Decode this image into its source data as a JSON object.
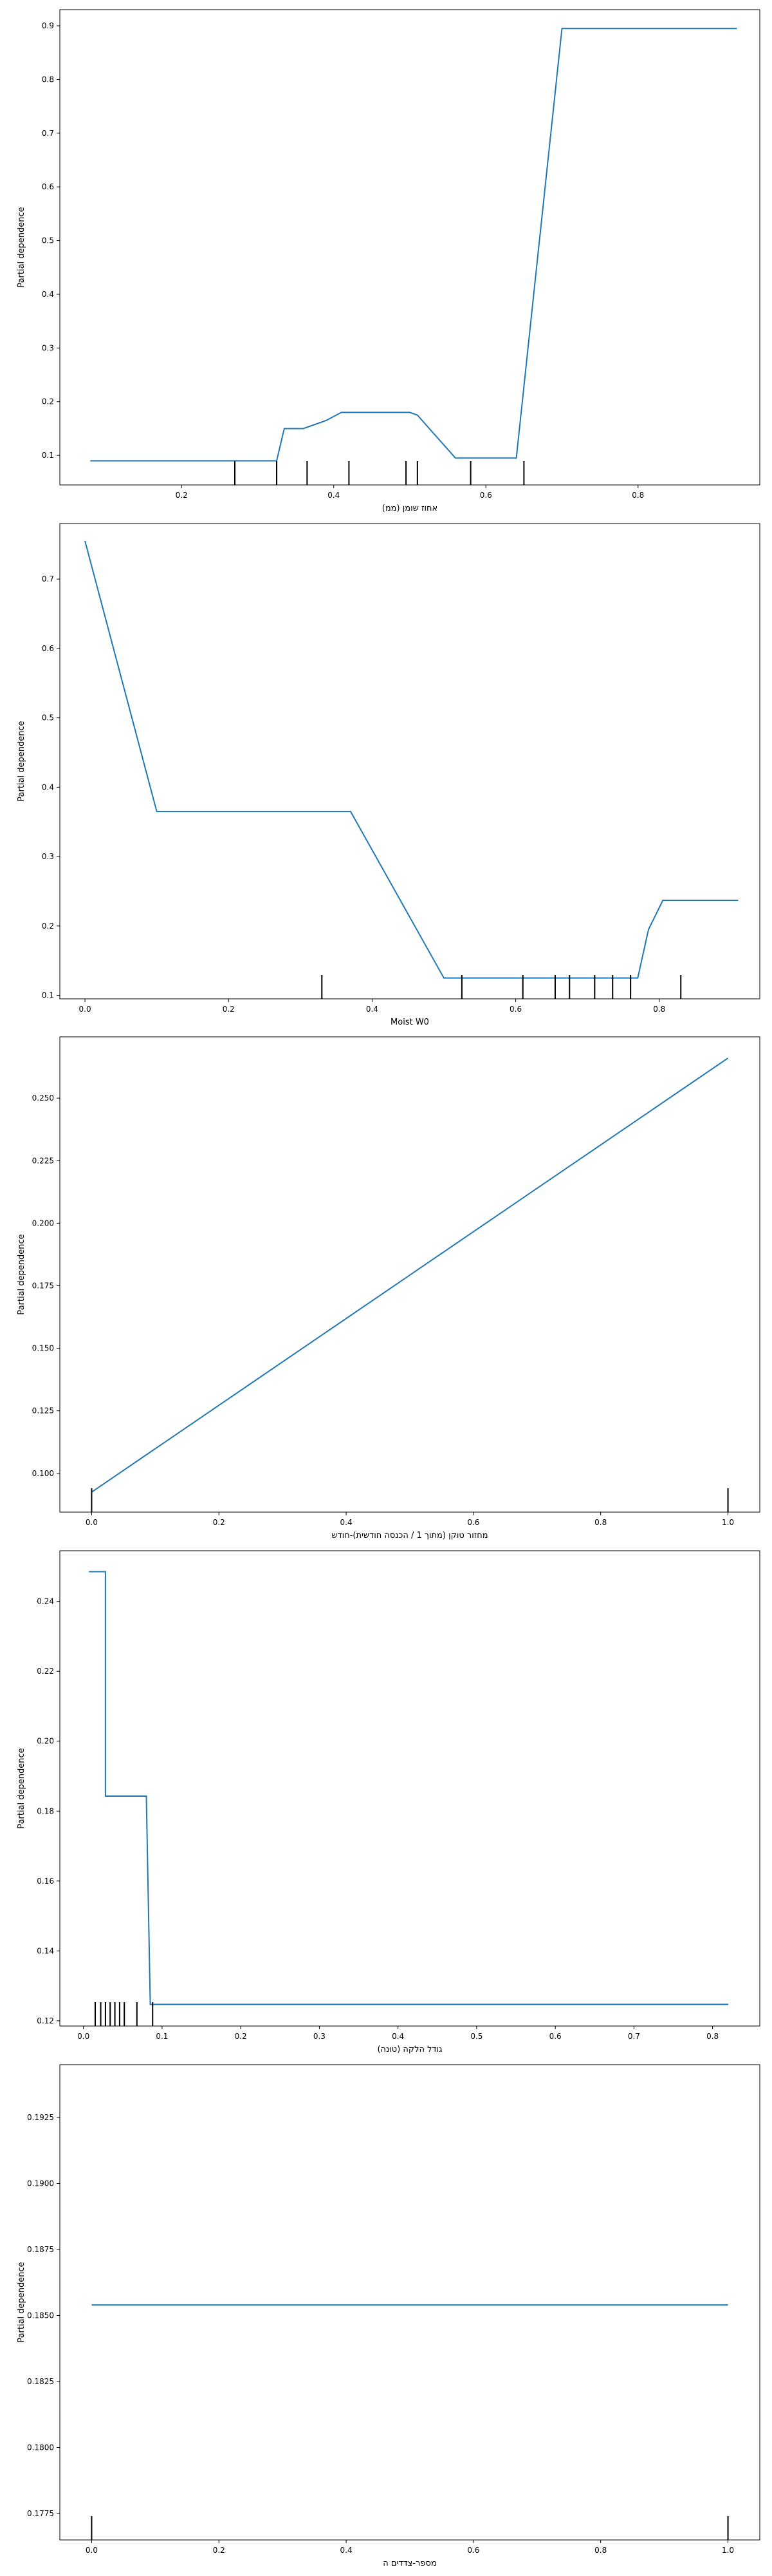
{
  "chart_data": [
    {
      "type": "line",
      "xlabel": "אחוז שומן (ממ)",
      "ylabel": "Partial dependence",
      "xlim": [
        0.04,
        0.96
      ],
      "ylim": [
        0.045,
        0.93
      ],
      "xticks": [
        0.2,
        0.4,
        0.6,
        0.8
      ],
      "xtick_labels": [
        "0.2",
        "0.4",
        "0.6",
        "0.8"
      ],
      "yticks": [
        0.1,
        0.2,
        0.3,
        0.4,
        0.5,
        0.6,
        0.7,
        0.8,
        0.9
      ],
      "ytick_labels": [
        "0.1",
        "0.2",
        "0.3",
        "0.4",
        "0.5",
        "0.6",
        "0.7",
        "0.8",
        "0.9"
      ],
      "series": [
        {
          "color": "#1f77b4",
          "x": [
            0.08,
            0.325,
            0.335,
            0.36,
            0.39,
            0.41,
            0.425,
            0.5,
            0.51,
            0.56,
            0.6,
            0.64,
            0.7,
            0.75,
            0.93
          ],
          "y": [
            0.09,
            0.09,
            0.15,
            0.15,
            0.165,
            0.18,
            0.18,
            0.18,
            0.175,
            0.095,
            0.095,
            0.095,
            0.895,
            0.895,
            0.895
          ]
        }
      ],
      "rug_x": [
        0.27,
        0.325,
        0.365,
        0.42,
        0.495,
        0.51,
        0.58,
        0.65
      ]
    },
    {
      "type": "line",
      "xlabel": "Moist W0",
      "ylabel": "Partial dependence",
      "xlim": [
        -0.035,
        0.94
      ],
      "ylim": [
        0.095,
        0.78
      ],
      "xticks": [
        0.0,
        0.2,
        0.4,
        0.6,
        0.8
      ],
      "xtick_labels": [
        "0.0",
        "0.2",
        "0.4",
        "0.6",
        "0.8"
      ],
      "yticks": [
        0.1,
        0.2,
        0.3,
        0.4,
        0.5,
        0.6,
        0.7
      ],
      "ytick_labels": [
        "0.1",
        "0.2",
        "0.3",
        "0.4",
        "0.5",
        "0.6",
        "0.7"
      ],
      "series": [
        {
          "color": "#1f77b4",
          "x": [
            0.0,
            0.1,
            0.37,
            0.5,
            0.54,
            0.66,
            0.77,
            0.785,
            0.805,
            0.91
          ],
          "y": [
            0.755,
            0.365,
            0.365,
            0.125,
            0.125,
            0.125,
            0.125,
            0.195,
            0.237,
            0.237
          ]
        }
      ],
      "rug_x": [
        0.33,
        0.525,
        0.61,
        0.655,
        0.675,
        0.71,
        0.735,
        0.76,
        0.83
      ]
    },
    {
      "type": "line",
      "xlabel": "מחזור טוקן (מתוך 1 / הכנסה חודשית)-חודש",
      "ylabel": "Partial dependence",
      "xlim": [
        -0.05,
        1.05
      ],
      "ylim": [
        0.0845,
        0.2745
      ],
      "xticks": [
        0.0,
        0.2,
        0.4,
        0.6,
        0.8,
        1.0
      ],
      "xtick_labels": [
        "0.0",
        "0.2",
        "0.4",
        "0.6",
        "0.8",
        "1.0"
      ],
      "yticks": [
        0.1,
        0.125,
        0.15,
        0.175,
        0.2,
        0.225,
        0.25
      ],
      "ytick_labels": [
        "0.100",
        "0.125",
        "0.150",
        "0.175",
        "0.200",
        "0.225",
        "0.250"
      ],
      "series": [
        {
          "color": "#1f77b4",
          "x": [
            0.0,
            1.0
          ],
          "y": [
            0.0925,
            0.266
          ]
        }
      ],
      "rug_x": [
        0.0,
        1.0
      ]
    },
    {
      "type": "line",
      "xlabel": "גודל הלקה (טונה)",
      "ylabel": "Partial dependence",
      "xlim": [
        -0.03,
        0.86
      ],
      "ylim": [
        0.1185,
        0.2545
      ],
      "xticks": [
        0.0,
        0.1,
        0.2,
        0.3,
        0.4,
        0.5,
        0.6,
        0.7,
        0.8
      ],
      "xtick_labels": [
        "0.0",
        "0.1",
        "0.2",
        "0.3",
        "0.4",
        "0.5",
        "0.6",
        "0.7",
        "0.8"
      ],
      "yticks": [
        0.12,
        0.14,
        0.16,
        0.18,
        0.2,
        0.22,
        0.24
      ],
      "ytick_labels": [
        "0.12",
        "0.14",
        "0.16",
        "0.18",
        "0.20",
        "0.22",
        "0.24"
      ],
      "series": [
        {
          "color": "#1f77b4",
          "x": [
            0.007,
            0.028,
            0.028,
            0.08,
            0.085,
            0.82
          ],
          "y": [
            0.2485,
            0.2485,
            0.1843,
            0.1843,
            0.1247,
            0.1247
          ]
        }
      ],
      "rug_x": [
        0.015,
        0.022,
        0.028,
        0.034,
        0.04,
        0.046,
        0.052,
        0.068,
        0.088
      ]
    },
    {
      "type": "line",
      "xlabel": "מספר-צדדים ה",
      "ylabel": "Partial dependence",
      "xlim": [
        -0.05,
        1.05
      ],
      "ylim": [
        0.1765,
        0.1945
      ],
      "xticks": [
        0.0,
        0.2,
        0.4,
        0.6,
        0.8,
        1.0
      ],
      "xtick_labels": [
        "0.0",
        "0.2",
        "0.4",
        "0.6",
        "0.8",
        "1.0"
      ],
      "yticks": [
        0.1775,
        0.18,
        0.1825,
        0.185,
        0.1875,
        0.19,
        0.1925
      ],
      "ytick_labels": [
        "0.1775",
        "0.1800",
        "0.1825",
        "0.1850",
        "0.1875",
        "0.1900",
        "0.1925"
      ],
      "series": [
        {
          "color": "#1f77b4",
          "x": [
            0.0,
            1.0
          ],
          "y": [
            0.1854,
            0.1854
          ]
        }
      ],
      "rug_x": [
        0.0,
        1.0
      ]
    }
  ]
}
